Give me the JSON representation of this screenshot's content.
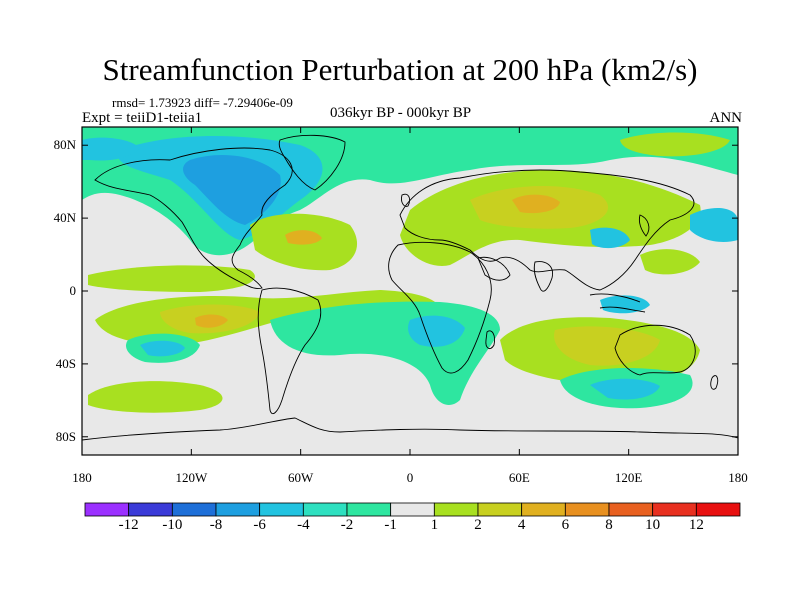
{
  "title": "Streamfunction Perturbation at 200 hPa (km2/s)",
  "stats": "rmsd= 1.73923  diff= -7.29406e-09",
  "experiment": "Expt = teiiD1-teiia1",
  "subtitle": "036kyr BP - 000kyr BP",
  "season": "ANN",
  "map": {
    "lat_ticks": [
      {
        "value": 80,
        "label": "80N"
      },
      {
        "value": 40,
        "label": "40N"
      },
      {
        "value": 0,
        "label": "0"
      },
      {
        "value": -40,
        "label": "40S"
      },
      {
        "value": -80,
        "label": "80S"
      }
    ],
    "lon_ticks": [
      {
        "value": -180,
        "label": "180"
      },
      {
        "value": -120,
        "label": "120W"
      },
      {
        "value": -60,
        "label": "60W"
      },
      {
        "value": 0,
        "label": "0"
      },
      {
        "value": 60,
        "label": "60E"
      },
      {
        "value": 120,
        "label": "120E"
      },
      {
        "value": 180,
        "label": "180"
      }
    ],
    "lon_range": [
      -180,
      180
    ],
    "lat_range": [
      -90,
      90
    ],
    "background_color": "#e8e8e8",
    "coastline_color": "#000000"
  },
  "colorbar": {
    "levels": [
      "-12",
      "-10",
      "-8",
      "-6",
      "-4",
      "-2",
      "-1",
      "1",
      "2",
      "4",
      "6",
      "8",
      "10",
      "12"
    ],
    "colors": [
      "#9b30ff",
      "#3b3bd8",
      "#1e6fd8",
      "#1e9fe0",
      "#22c3e0",
      "#2ee0c0",
      "#2ee6a0",
      "#e8e8e8",
      "#a8e020",
      "#c8d020",
      "#e0b020",
      "#e89020",
      "#e86020",
      "#e83020",
      "#e81010"
    ]
  }
}
